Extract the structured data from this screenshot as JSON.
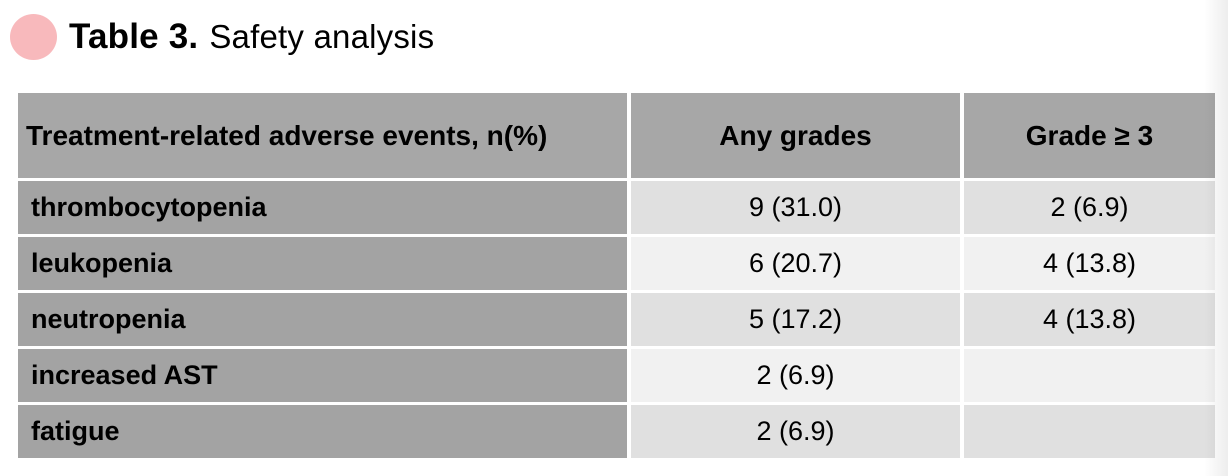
{
  "title": {
    "prefix": "Table 3.",
    "text": "Safety analysis"
  },
  "theme": {
    "page_bg": "#ffffff",
    "accent_pink": "#f8b9bc",
    "header_bg": "#a7a7a7",
    "label_bg": "#a3a3a3",
    "row_odd_bg": "#e0e0e0",
    "row_even_bg": "#f1f1f1",
    "text_color": "#000000"
  },
  "table": {
    "columns": [
      "Treatment-related adverse events, n(%)",
      "Any grades",
      "Grade ≥ 3"
    ],
    "rows": [
      {
        "label": "thrombocytopenia",
        "any_grades": "9 (31.0)",
        "grade_ge_3": "2 (6.9)"
      },
      {
        "label": "leukopenia",
        "any_grades": "6 (20.7)",
        "grade_ge_3": "4 (13.8)"
      },
      {
        "label": "neutropenia",
        "any_grades": "5 (17.2)",
        "grade_ge_3": "4 (13.8)"
      },
      {
        "label": "increased AST",
        "any_grades": "2 (6.9)",
        "grade_ge_3": ""
      },
      {
        "label": "fatigue",
        "any_grades": "2 (6.9)",
        "grade_ge_3": ""
      }
    ]
  }
}
